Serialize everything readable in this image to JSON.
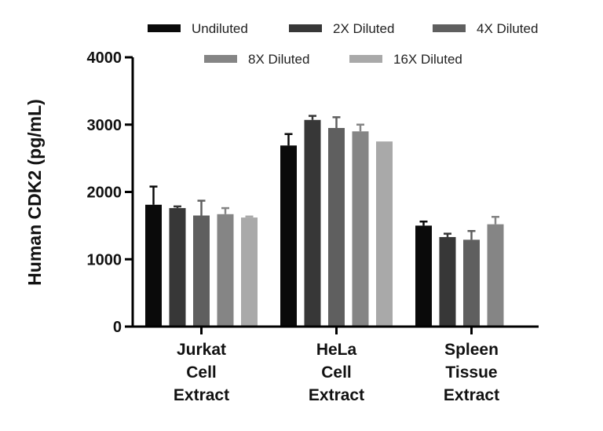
{
  "chart_data": {
    "type": "bar",
    "title": "",
    "xlabel": "",
    "ylabel": "Human CDK2 (pg/mL)",
    "ylim": [
      0,
      4000
    ],
    "yticks": [
      0,
      1000,
      2000,
      3000,
      4000
    ],
    "categories": [
      [
        "Jurkat",
        "Cell",
        "Extract"
      ],
      [
        "HeLa",
        "Cell",
        "Extract"
      ],
      [
        "Spleen",
        "Tissue",
        "Extract"
      ]
    ],
    "series": [
      {
        "name": "Undiluted",
        "color": "#0a0a0a",
        "values": [
          1810,
          2690,
          1500
        ],
        "errors": [
          270,
          170,
          60
        ]
      },
      {
        "name": "2X Diluted",
        "color": "#373737",
        "values": [
          1760,
          3070,
          1330
        ],
        "errors": [
          25,
          60,
          50
        ]
      },
      {
        "name": "4X Diluted",
        "color": "#5f5f5f",
        "values": [
          1650,
          2950,
          1290
        ],
        "errors": [
          220,
          160,
          130
        ]
      },
      {
        "name": "8X Diluted",
        "color": "#858585",
        "values": [
          1670,
          2900,
          1520
        ],
        "errors": [
          90,
          100,
          110
        ]
      },
      {
        "name": "16X Diluted",
        "color": "#a9a9a9",
        "values": [
          1620,
          2750,
          null
        ],
        "errors": [
          15,
          0,
          null
        ]
      }
    ],
    "legend_position": "top"
  }
}
